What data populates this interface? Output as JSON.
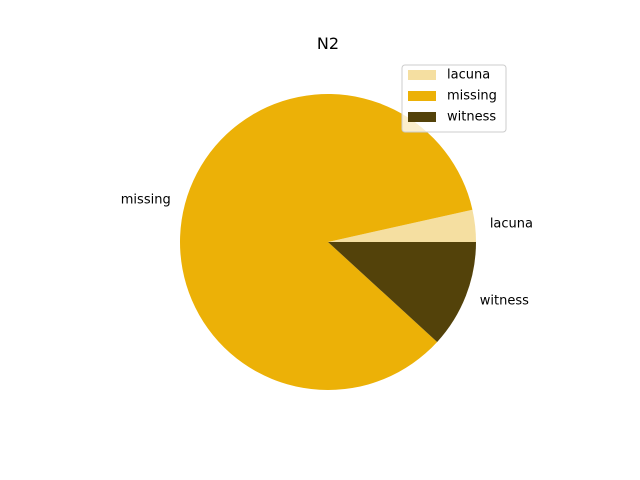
{
  "chart_data": {
    "type": "pie",
    "title": "N2",
    "categories": [
      "lacuna",
      "missing",
      "witness"
    ],
    "values": [
      3.5,
      84.7,
      11.8
    ],
    "colors": [
      "#f5dfa1",
      "#ecb107",
      "#53420a"
    ],
    "start_angle_deg": 0,
    "direction": "counterclockwise",
    "legend": {
      "placement": "upper-right",
      "entries": [
        "lacuna",
        "missing",
        "witness"
      ]
    }
  }
}
